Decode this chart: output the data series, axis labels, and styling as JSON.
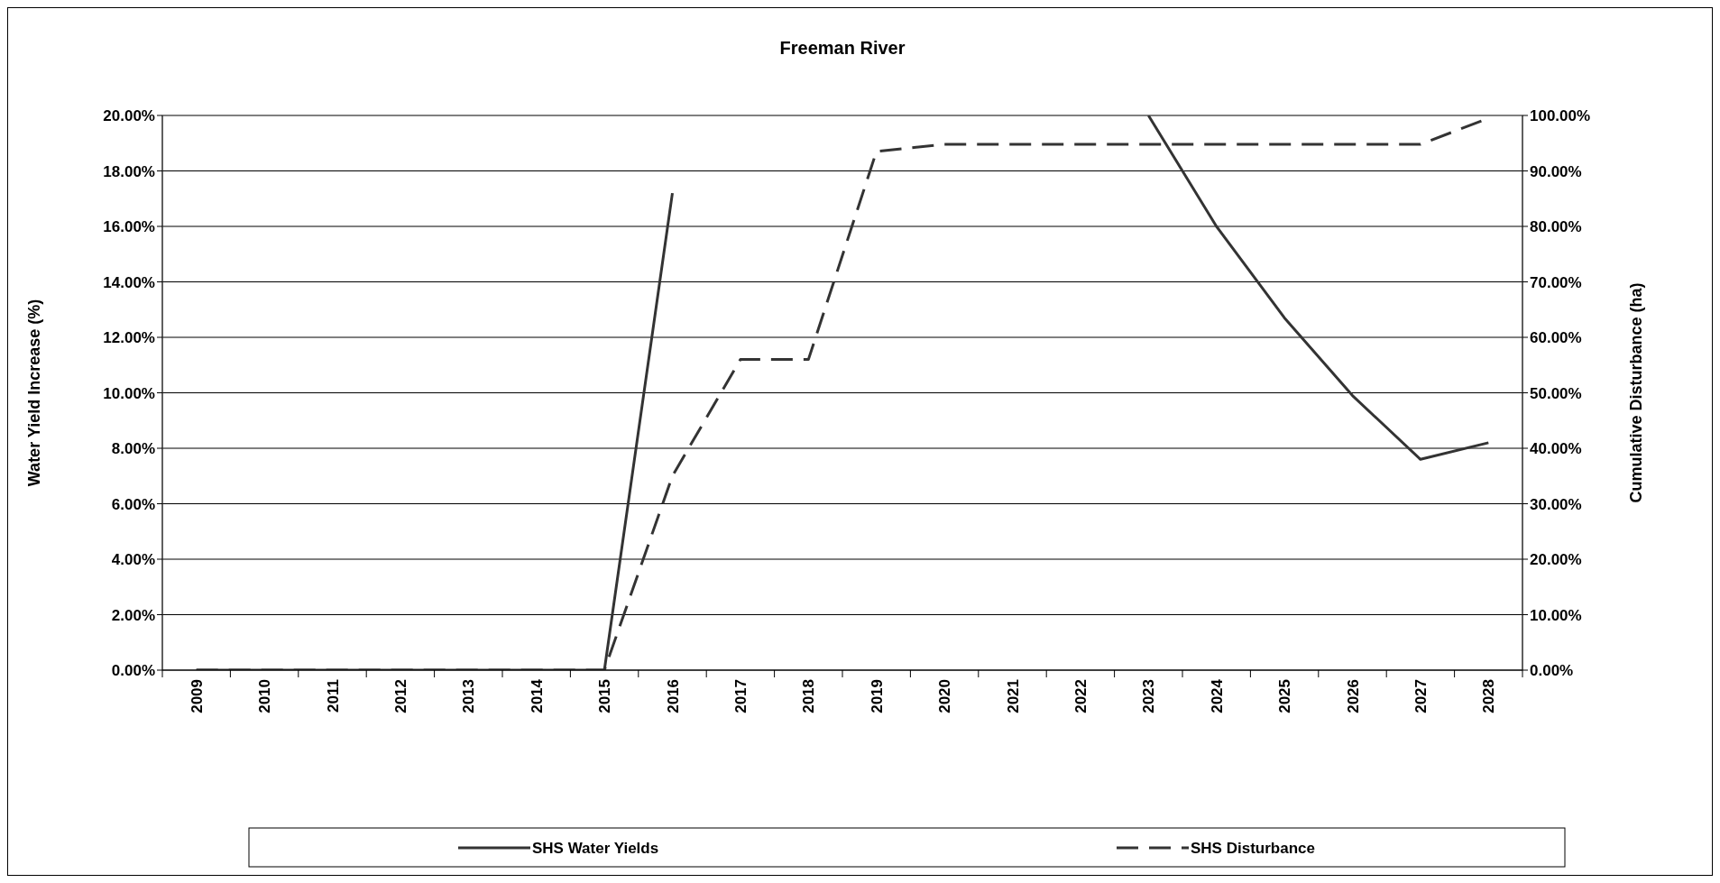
{
  "chart_data": {
    "type": "line",
    "title": "Freeman River",
    "ylabel": "Water Yield Increase (%)",
    "y2label": "Cumulative Disturbance (ha)",
    "categories": [
      "2009",
      "2010",
      "2011",
      "2012",
      "2013",
      "2014",
      "2015",
      "2016",
      "2017",
      "2018",
      "2019",
      "2020",
      "2021",
      "2022",
      "2023",
      "2024",
      "2025",
      "2026",
      "2027",
      "2028"
    ],
    "series": [
      {
        "name": "SHS Water Yields",
        "color": "#333333",
        "line_style": "solid",
        "values": [
          0,
          0,
          0,
          0,
          0,
          0,
          0,
          17.2,
          null,
          null,
          null,
          null,
          null,
          null,
          20,
          16.0,
          12.7,
          9.9,
          7.6,
          8.2
        ]
      },
      {
        "name": "SHS Disturbance",
        "color": "#333333",
        "line_style": "dashed",
        "axis": "y2",
        "values": [
          0,
          0,
          0,
          0,
          0,
          0,
          0,
          35,
          56,
          56,
          93.5,
          94.8,
          94.8,
          94.8,
          94.8,
          94.8,
          94.8,
          94.8,
          94.8,
          99.5
        ]
      }
    ],
    "ylim": [
      0,
      20
    ],
    "yticks": [
      {
        "value": 0,
        "label": "0.00%"
      },
      {
        "value": 2,
        "label": "2.00%"
      },
      {
        "value": 4,
        "label": "4.00%"
      },
      {
        "value": 6,
        "label": "6.00%"
      },
      {
        "value": 8,
        "label": "8.00%"
      },
      {
        "value": 10,
        "label": "10.00%"
      },
      {
        "value": 12,
        "label": "12.00%"
      },
      {
        "value": 14,
        "label": "14.00%"
      },
      {
        "value": 16,
        "label": "16.00%"
      },
      {
        "value": 18,
        "label": "18.00%"
      },
      {
        "value": 20,
        "label": "20.00%"
      }
    ],
    "y2lim": [
      0,
      100
    ],
    "y2ticks": [
      {
        "value": 0,
        "label": "0.00%"
      },
      {
        "value": 10,
        "label": "10.00%"
      },
      {
        "value": 20,
        "label": "20.00%"
      },
      {
        "value": 30,
        "label": "30.00%"
      },
      {
        "value": 40,
        "label": "40.00%"
      },
      {
        "value": 50,
        "label": "50.00%"
      },
      {
        "value": 60,
        "label": "60.00%"
      },
      {
        "value": 70,
        "label": "70.00%"
      },
      {
        "value": 80,
        "label": "80.00%"
      },
      {
        "value": 90,
        "label": "90.00%"
      },
      {
        "value": 100,
        "label": "100.00%"
      }
    ],
    "grid": "y",
    "legend": "bottom",
    "marker": "none"
  }
}
